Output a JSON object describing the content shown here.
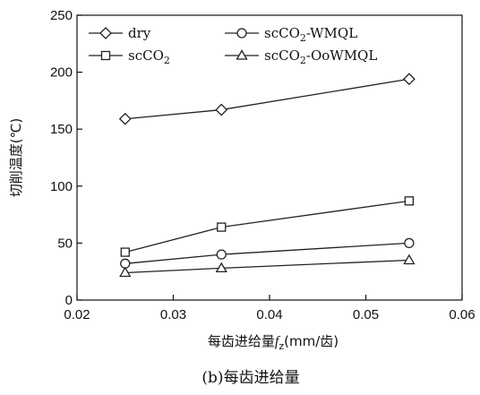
{
  "chart_data": {
    "type": "line",
    "xlabel": "每齿进给量fz(mm/齿)",
    "xlabel_main": "每齿进给量",
    "xlabel_symbol": "f",
    "xlabel_subscript": "z",
    "xlabel_unit": "(mm/齿)",
    "ylabel": "切削温度(℃)",
    "caption": "(b)每齿进给量",
    "xlim": [
      0.02,
      0.06
    ],
    "ylim": [
      0,
      250
    ],
    "x_ticks": [
      0.02,
      0.03,
      0.04,
      0.05,
      0.06
    ],
    "x_tick_labels": [
      "0.02",
      "0.03",
      "0.04",
      "0.05",
      "0.06"
    ],
    "y_ticks": [
      0,
      50,
      100,
      150,
      200,
      250
    ],
    "y_tick_labels": [
      "0",
      "50",
      "100",
      "150",
      "200",
      "250"
    ],
    "grid": false,
    "legend_position": "top-left",
    "x": [
      0.025,
      0.035,
      0.0545
    ],
    "series": [
      {
        "name": "dry",
        "name_main": "dry",
        "name_sub": "",
        "name_rest": "",
        "marker": "diamond",
        "values": [
          159,
          167,
          194
        ]
      },
      {
        "name": "scCO2",
        "name_main": "scCO",
        "name_sub": "2",
        "name_rest": "",
        "marker": "square",
        "values": [
          42,
          64,
          87
        ]
      },
      {
        "name": "scCO2-WMQL",
        "name_main": "scCO",
        "name_sub": "2",
        "name_rest": "-WMQL",
        "marker": "circle",
        "values": [
          32,
          40,
          50
        ]
      },
      {
        "name": "scCO2-OoWMQL",
        "name_main": "scCO",
        "name_sub": "2",
        "name_rest": "-OoWMQL",
        "marker": "triangle",
        "values": [
          24,
          28,
          35
        ]
      }
    ]
  }
}
